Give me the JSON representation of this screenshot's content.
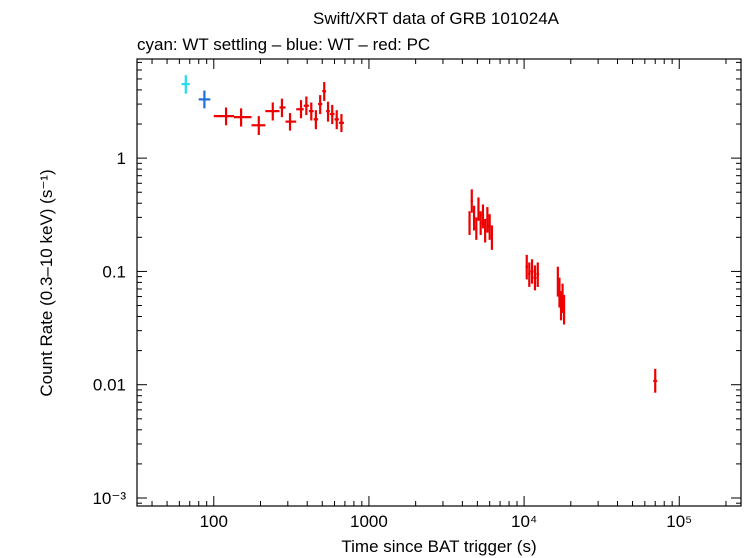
{
  "chart_data": {
    "type": "scatter",
    "title": "Swift/XRT data of GRB 101024A",
    "subtitle": "cyan: WT settling – blue: WT – red: PC",
    "xlabel": "Time since BAT trigger (s)",
    "ylabel": "Count Rate (0.3–10 keV) (s⁻¹)",
    "xscale": "log",
    "yscale": "log",
    "xlim": [
      32,
      250000
    ],
    "ylim": [
      0.00085,
      7.5
    ],
    "x_ticks": [
      {
        "value": 100,
        "label": "100"
      },
      {
        "value": 1000,
        "label": "1000"
      },
      {
        "value": 10000,
        "label": "10⁴"
      },
      {
        "value": 100000,
        "label": "10⁵"
      }
    ],
    "y_ticks": [
      {
        "value": 1,
        "label": "1"
      },
      {
        "value": 0.1,
        "label": "0.1"
      },
      {
        "value": 0.01,
        "label": "0.01"
      },
      {
        "value": 0.001,
        "label": "10⁻³"
      }
    ],
    "series": [
      {
        "name": "WT settling",
        "color": "#22ddee",
        "points": [
          {
            "x": 66,
            "xlo": 62,
            "xhi": 70,
            "y": 4.5,
            "ylo": 3.7,
            "yhi": 5.4
          }
        ]
      },
      {
        "name": "WT",
        "color": "#1e6fdd",
        "points": [
          {
            "x": 87,
            "xlo": 80,
            "xhi": 95,
            "y": 3.3,
            "ylo": 2.75,
            "yhi": 3.95
          }
        ]
      },
      {
        "name": "PC",
        "color": "#ee0000",
        "points": [
          {
            "x": 120,
            "xlo": 100,
            "xhi": 135,
            "y": 2.35,
            "ylo": 1.95,
            "yhi": 2.8
          },
          {
            "x": 150,
            "xlo": 135,
            "xhi": 175,
            "y": 2.3,
            "ylo": 1.9,
            "yhi": 2.75
          },
          {
            "x": 195,
            "xlo": 175,
            "xhi": 215,
            "y": 1.95,
            "ylo": 1.6,
            "yhi": 2.35
          },
          {
            "x": 240,
            "xlo": 215,
            "xhi": 265,
            "y": 2.6,
            "ylo": 2.15,
            "yhi": 3.1
          },
          {
            "x": 275,
            "xlo": 265,
            "xhi": 290,
            "y": 2.8,
            "ylo": 2.3,
            "yhi": 3.35
          },
          {
            "x": 310,
            "xlo": 290,
            "xhi": 340,
            "y": 2.1,
            "ylo": 1.75,
            "yhi": 2.5
          },
          {
            "x": 365,
            "xlo": 340,
            "xhi": 380,
            "y": 2.7,
            "ylo": 2.25,
            "yhi": 3.25
          },
          {
            "x": 395,
            "xlo": 380,
            "xhi": 410,
            "y": 2.9,
            "ylo": 2.4,
            "yhi": 3.5
          },
          {
            "x": 425,
            "xlo": 410,
            "xhi": 440,
            "y": 2.6,
            "ylo": 2.15,
            "yhi": 3.1
          },
          {
            "x": 455,
            "xlo": 440,
            "xhi": 470,
            "y": 2.2,
            "ylo": 1.8,
            "yhi": 2.65
          },
          {
            "x": 485,
            "xlo": 470,
            "xhi": 500,
            "y": 3.0,
            "ylo": 2.45,
            "yhi": 3.6
          },
          {
            "x": 515,
            "xlo": 500,
            "xhi": 530,
            "y": 3.9,
            "ylo": 3.2,
            "yhi": 4.7
          },
          {
            "x": 545,
            "xlo": 530,
            "xhi": 560,
            "y": 2.6,
            "ylo": 2.1,
            "yhi": 3.15
          },
          {
            "x": 580,
            "xlo": 560,
            "xhi": 600,
            "y": 2.45,
            "ylo": 2.0,
            "yhi": 2.95
          },
          {
            "x": 620,
            "xlo": 600,
            "xhi": 640,
            "y": 2.2,
            "ylo": 1.8,
            "yhi": 2.65
          },
          {
            "x": 665,
            "xlo": 640,
            "xhi": 690,
            "y": 2.05,
            "ylo": 1.7,
            "yhi": 2.45
          },
          {
            "x": 4450,
            "xlo": 4380,
            "xhi": 4520,
            "y": 0.27,
            "ylo": 0.21,
            "yhi": 0.34
          },
          {
            "x": 4600,
            "xlo": 4520,
            "xhi": 4680,
            "y": 0.42,
            "ylo": 0.33,
            "yhi": 0.53
          },
          {
            "x": 4760,
            "xlo": 4680,
            "xhi": 4840,
            "y": 0.3,
            "ylo": 0.23,
            "yhi": 0.38
          },
          {
            "x": 4920,
            "xlo": 4840,
            "xhi": 5000,
            "y": 0.24,
            "ylo": 0.19,
            "yhi": 0.3
          },
          {
            "x": 5080,
            "xlo": 5000,
            "xhi": 5160,
            "y": 0.36,
            "ylo": 0.28,
            "yhi": 0.45
          },
          {
            "x": 5250,
            "xlo": 5160,
            "xhi": 5340,
            "y": 0.27,
            "ylo": 0.21,
            "yhi": 0.34
          },
          {
            "x": 5430,
            "xlo": 5340,
            "xhi": 5520,
            "y": 0.31,
            "ylo": 0.24,
            "yhi": 0.39
          },
          {
            "x": 5610,
            "xlo": 5520,
            "xhi": 5700,
            "y": 0.23,
            "ylo": 0.18,
            "yhi": 0.29
          },
          {
            "x": 5800,
            "xlo": 5700,
            "xhi": 5900,
            "y": 0.29,
            "ylo": 0.22,
            "yhi": 0.37
          },
          {
            "x": 6000,
            "xlo": 5900,
            "xhi": 6100,
            "y": 0.25,
            "ylo": 0.19,
            "yhi": 0.32
          },
          {
            "x": 6200,
            "xlo": 6100,
            "xhi": 6300,
            "y": 0.2,
            "ylo": 0.155,
            "yhi": 0.255
          },
          {
            "x": 10400,
            "xlo": 10200,
            "xhi": 10600,
            "y": 0.11,
            "ylo": 0.085,
            "yhi": 0.14
          },
          {
            "x": 10800,
            "xlo": 10600,
            "xhi": 11000,
            "y": 0.095,
            "ylo": 0.073,
            "yhi": 0.12
          },
          {
            "x": 11250,
            "xlo": 11000,
            "xhi": 11500,
            "y": 0.1,
            "ylo": 0.078,
            "yhi": 0.128
          },
          {
            "x": 11750,
            "xlo": 11500,
            "xhi": 12000,
            "y": 0.088,
            "ylo": 0.068,
            "yhi": 0.113
          },
          {
            "x": 12250,
            "xlo": 12000,
            "xhi": 12500,
            "y": 0.095,
            "ylo": 0.073,
            "yhi": 0.12
          },
          {
            "x": 16500,
            "xlo": 16300,
            "xhi": 16700,
            "y": 0.082,
            "ylo": 0.06,
            "yhi": 0.11
          },
          {
            "x": 16900,
            "xlo": 16700,
            "xhi": 17100,
            "y": 0.065,
            "ylo": 0.048,
            "yhi": 0.088
          },
          {
            "x": 17300,
            "xlo": 17100,
            "xhi": 17500,
            "y": 0.05,
            "ylo": 0.037,
            "yhi": 0.067
          },
          {
            "x": 17700,
            "xlo": 17500,
            "xhi": 17900,
            "y": 0.058,
            "ylo": 0.043,
            "yhi": 0.078
          },
          {
            "x": 18100,
            "xlo": 17900,
            "xhi": 18300,
            "y": 0.046,
            "ylo": 0.034,
            "yhi": 0.062
          },
          {
            "x": 70000,
            "xlo": 68000,
            "xhi": 72000,
            "y": 0.0108,
            "ylo": 0.0085,
            "yhi": 0.0138
          }
        ]
      }
    ]
  }
}
